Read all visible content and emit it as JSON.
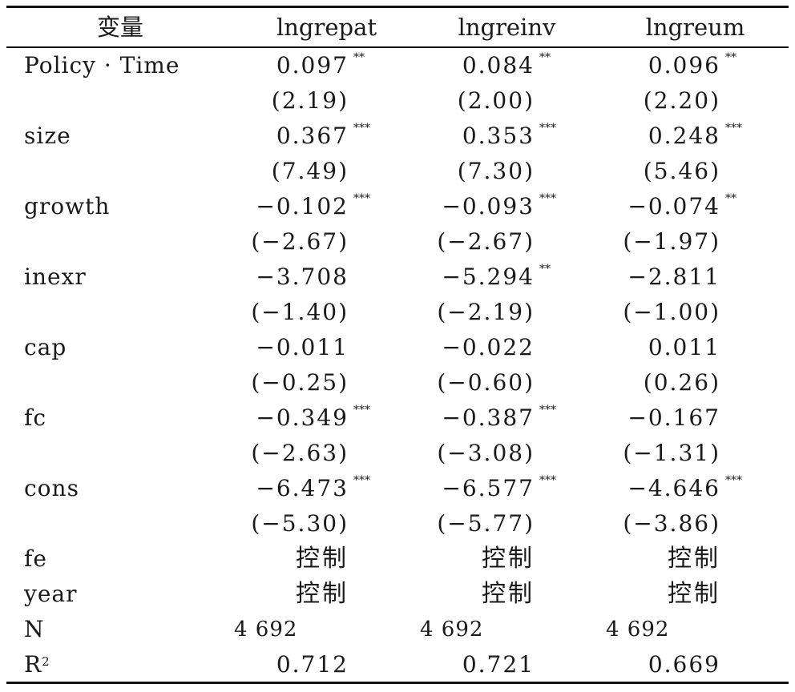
{
  "table": {
    "headers": [
      "变量",
      "lngrepat",
      "lngreinv",
      "lngreum"
    ],
    "rows": [
      {
        "label": "Policy · Time",
        "cells": [
          {
            "v": "0.097",
            "s": "**"
          },
          {
            "v": "0.084",
            "s": "**"
          },
          {
            "v": "0.096",
            "s": "**"
          }
        ]
      },
      {
        "label": "",
        "cells": [
          {
            "v": "(2.19)",
            "s": ""
          },
          {
            "v": "(2.00)",
            "s": ""
          },
          {
            "v": "(2.20)",
            "s": ""
          }
        ]
      },
      {
        "label": "size",
        "cells": [
          {
            "v": "0.367",
            "s": "***"
          },
          {
            "v": "0.353",
            "s": "***"
          },
          {
            "v": "0.248",
            "s": "***"
          }
        ]
      },
      {
        "label": "",
        "cells": [
          {
            "v": "(7.49)",
            "s": ""
          },
          {
            "v": "(7.30)",
            "s": ""
          },
          {
            "v": "(5.46)",
            "s": ""
          }
        ]
      },
      {
        "label": "growth",
        "cells": [
          {
            "v": "−0.102",
            "s": "***"
          },
          {
            "v": "−0.093",
            "s": "***"
          },
          {
            "v": "−0.074",
            "s": "**"
          }
        ]
      },
      {
        "label": "",
        "cells": [
          {
            "v": "(−2.67)",
            "s": ""
          },
          {
            "v": "(−2.67)",
            "s": ""
          },
          {
            "v": "(−1.97)",
            "s": ""
          }
        ]
      },
      {
        "label": "inexr",
        "cells": [
          {
            "v": "−3.708",
            "s": ""
          },
          {
            "v": "−5.294",
            "s": "**"
          },
          {
            "v": "−2.811",
            "s": ""
          }
        ]
      },
      {
        "label": "",
        "cells": [
          {
            "v": "(−1.40)",
            "s": ""
          },
          {
            "v": "(−2.19)",
            "s": ""
          },
          {
            "v": "(−1.00)",
            "s": ""
          }
        ]
      },
      {
        "label": "cap",
        "cells": [
          {
            "v": "−0.011",
            "s": ""
          },
          {
            "v": "−0.022",
            "s": ""
          },
          {
            "v": "0.011",
            "s": ""
          }
        ]
      },
      {
        "label": "",
        "cells": [
          {
            "v": "(−0.25)",
            "s": ""
          },
          {
            "v": "(−0.60)",
            "s": ""
          },
          {
            "v": "(0.26)",
            "s": ""
          }
        ]
      },
      {
        "label": "fc",
        "cells": [
          {
            "v": "−0.349",
            "s": "***"
          },
          {
            "v": "−0.387",
            "s": "***"
          },
          {
            "v": "−0.167",
            "s": ""
          }
        ]
      },
      {
        "label": "",
        "cells": [
          {
            "v": "(−2.63)",
            "s": ""
          },
          {
            "v": "(−3.08)",
            "s": ""
          },
          {
            "v": "(−1.31)",
            "s": ""
          }
        ]
      },
      {
        "label": "cons",
        "cells": [
          {
            "v": "−6.473",
            "s": "***"
          },
          {
            "v": "−6.577",
            "s": "***"
          },
          {
            "v": "−4.646",
            "s": "***"
          }
        ]
      },
      {
        "label": "",
        "cells": [
          {
            "v": "(−5.30)",
            "s": ""
          },
          {
            "v": "(−5.77)",
            "s": ""
          },
          {
            "v": "(−3.86)",
            "s": ""
          }
        ]
      },
      {
        "label": "fe",
        "kind": "cjk",
        "cells": [
          {
            "v": "控制",
            "s": ""
          },
          {
            "v": "控制",
            "s": ""
          },
          {
            "v": "控制",
            "s": ""
          }
        ]
      },
      {
        "label": "year",
        "kind": "cjk",
        "cells": [
          {
            "v": "控制",
            "s": ""
          },
          {
            "v": "控制",
            "s": ""
          },
          {
            "v": "控制",
            "s": ""
          }
        ]
      },
      {
        "label": "N",
        "kind": "count",
        "cells": [
          {
            "v": "4 692",
            "s": ""
          },
          {
            "v": "4 692",
            "s": ""
          },
          {
            "v": "4 692",
            "s": ""
          }
        ]
      },
      {
        "label": "R",
        "label_sup": "2",
        "cells": [
          {
            "v": "0.712",
            "s": ""
          },
          {
            "v": "0.721",
            "s": ""
          },
          {
            "v": "0.669",
            "s": ""
          }
        ]
      }
    ]
  }
}
